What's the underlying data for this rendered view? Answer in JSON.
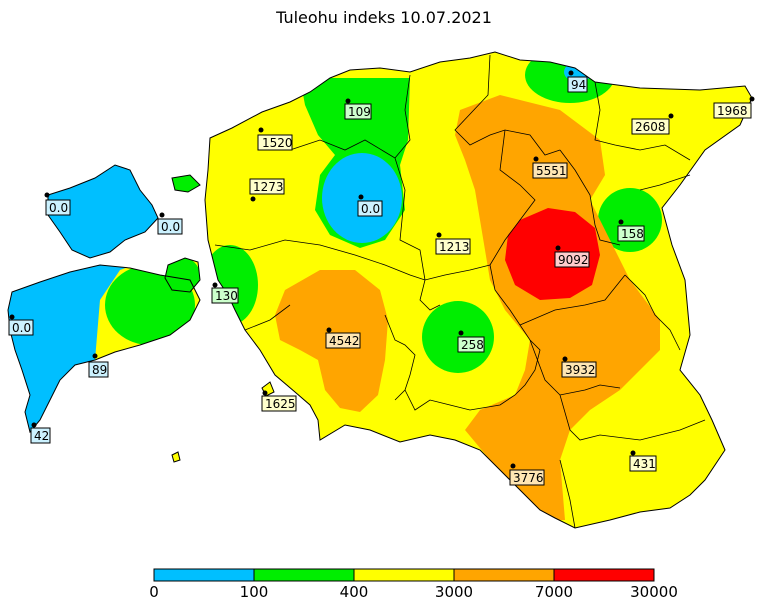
{
  "title": "Tuleohu indeks 10.07.2021",
  "colors": {
    "low": "#00bfff",
    "mid_low": "#00ee00",
    "mid": "#ffff00",
    "high": "#ffa500",
    "extreme": "#ff0000",
    "border": "#000000"
  },
  "stations": [
    {
      "name": "station-1520",
      "value": "1520"
    },
    {
      "name": "station-109",
      "value": "109"
    },
    {
      "name": "station-94",
      "value": "94"
    },
    {
      "name": "station-2608",
      "value": "2608"
    },
    {
      "name": "station-1968",
      "value": "1968"
    },
    {
      "name": "station-5551",
      "value": "5551"
    },
    {
      "name": "station-1273",
      "value": "1273"
    },
    {
      "name": "station-0-hiiumaa-w",
      "value": "0.0"
    },
    {
      "name": "station-0-hiiumaa-e",
      "value": "0.0"
    },
    {
      "name": "station-0-central",
      "value": "0.0"
    },
    {
      "name": "station-1213",
      "value": "1213"
    },
    {
      "name": "station-9092",
      "value": "9092"
    },
    {
      "name": "station-158",
      "value": "158"
    },
    {
      "name": "station-130",
      "value": "130"
    },
    {
      "name": "station-0-saaremaa",
      "value": "0.0"
    },
    {
      "name": "station-4542",
      "value": "4542"
    },
    {
      "name": "station-258",
      "value": "258"
    },
    {
      "name": "station-3932",
      "value": "3932"
    },
    {
      "name": "station-89",
      "value": "89"
    },
    {
      "name": "station-1625",
      "value": "1625"
    },
    {
      "name": "station-42",
      "value": "42"
    },
    {
      "name": "station-431",
      "value": "431"
    },
    {
      "name": "station-3776",
      "value": "3776"
    }
  ],
  "colorbar": {
    "ticks": [
      "0",
      "100",
      "400",
      "3000",
      "7000",
      "30000"
    ]
  }
}
